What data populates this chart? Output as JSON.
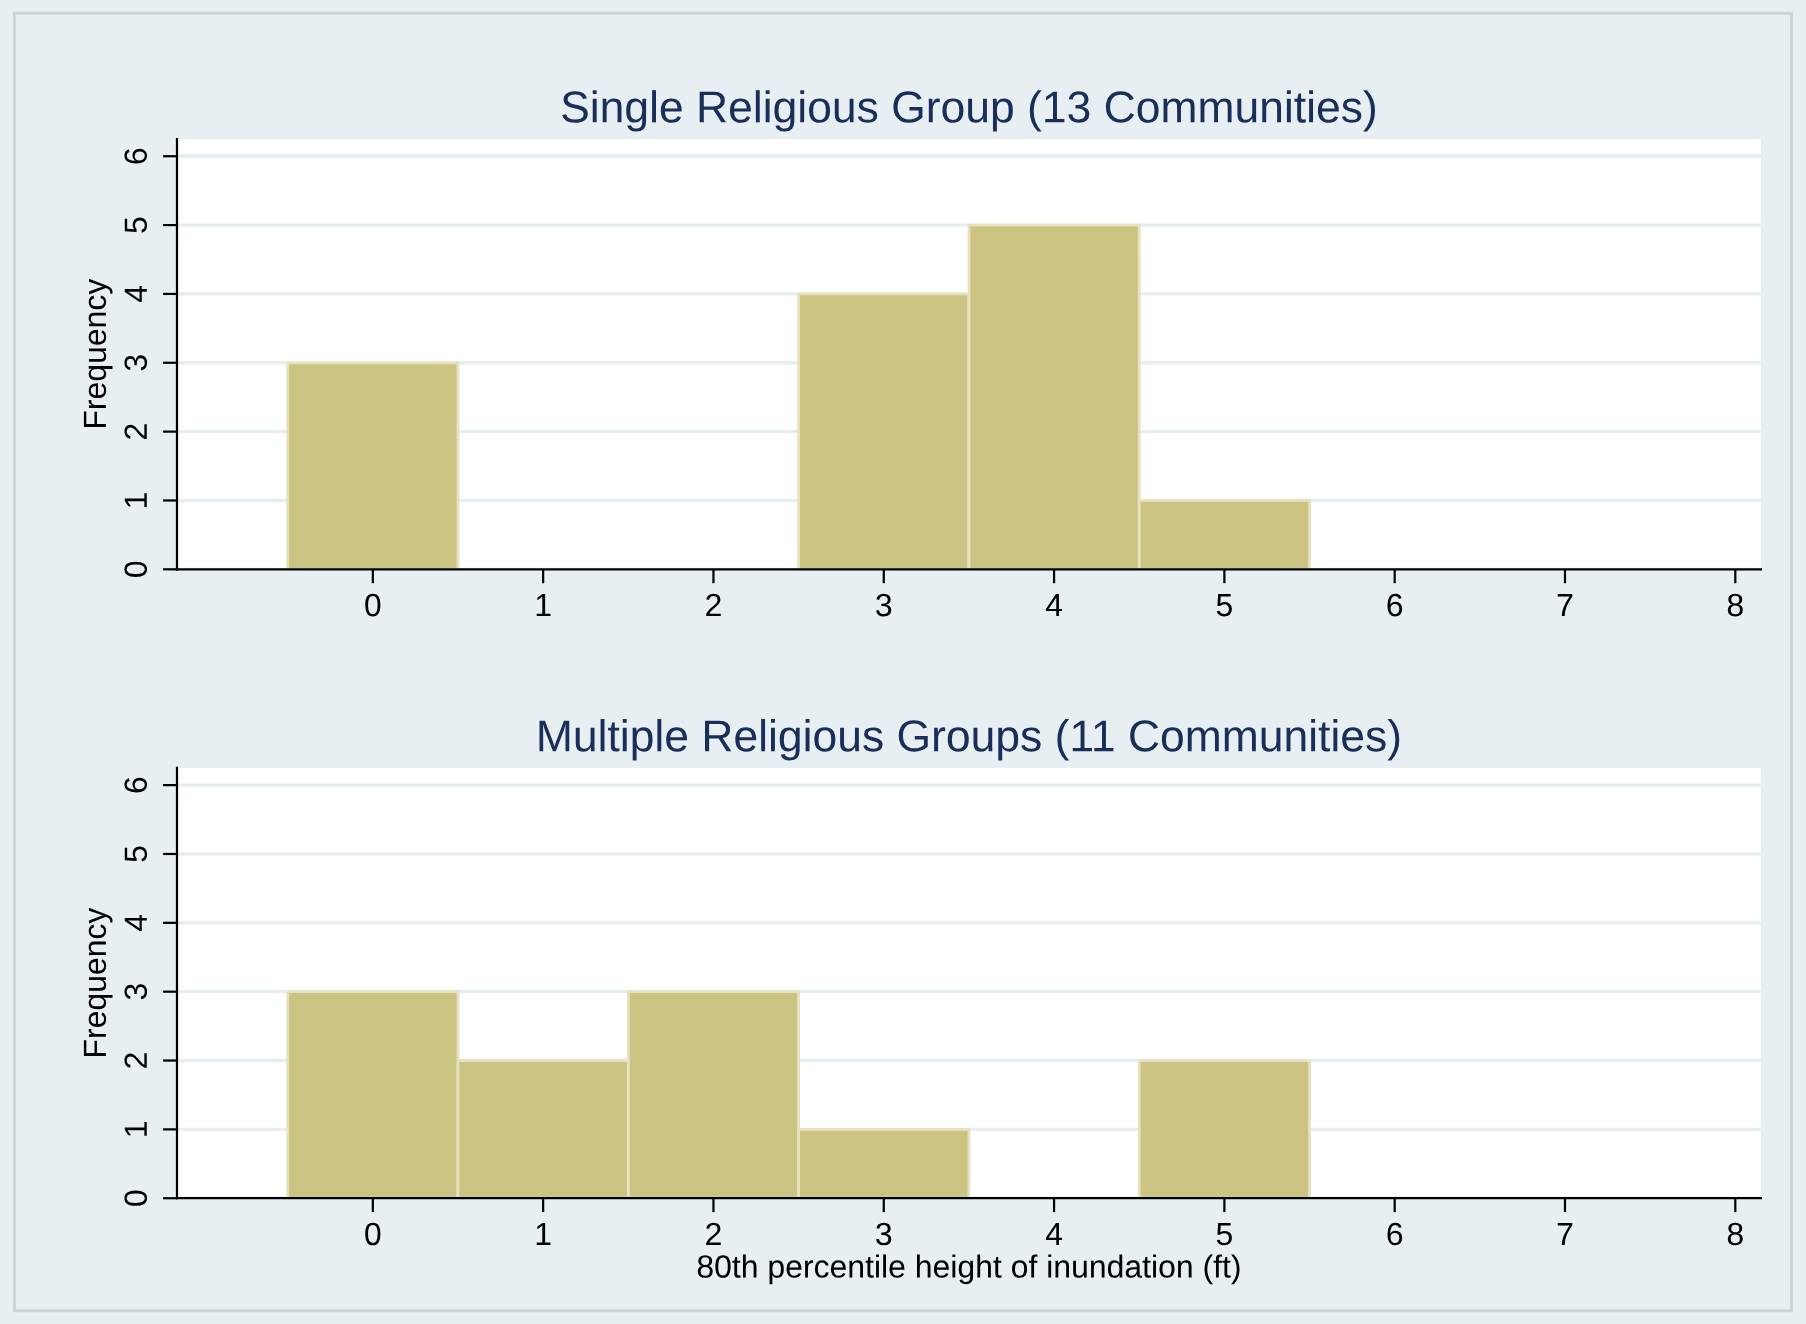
{
  "chart_data": [
    {
      "type": "histogram",
      "title": "Single Religious Group (13 Communities)",
      "ylabel": "Frequency",
      "bins": [
        -0.5,
        0.5,
        1.5,
        2.5,
        3.5,
        4.5,
        5.5
      ],
      "values": [
        3,
        0,
        0,
        4,
        5,
        1
      ],
      "color": "#cbc382",
      "xlim": [
        -1.15,
        8.15
      ],
      "xticks": [
        0,
        1,
        2,
        3,
        4,
        5,
        6,
        7,
        8
      ],
      "ylim": [
        0,
        6.25
      ],
      "yticks": [
        0,
        1,
        2,
        3,
        4,
        5,
        6
      ],
      "grid": "y"
    },
    {
      "type": "histogram",
      "title": "Multiple Religious Groups (11 Communities)",
      "xlabel": "80th percentile height of inundation (ft)",
      "ylabel": "Frequency",
      "bins": [
        -0.5,
        0.5,
        1.5,
        2.5,
        3.5,
        4.5,
        5.5
      ],
      "values": [
        3,
        2,
        3,
        1,
        0,
        2
      ],
      "color": "#cbc382",
      "xlim": [
        -1.15,
        8.15
      ],
      "xticks": [
        0,
        1,
        2,
        3,
        4,
        5,
        6,
        7,
        8
      ],
      "ylim": [
        0,
        6.25
      ],
      "yticks": [
        0,
        1,
        2,
        3,
        4,
        5,
        6
      ],
      "grid": "y"
    }
  ]
}
